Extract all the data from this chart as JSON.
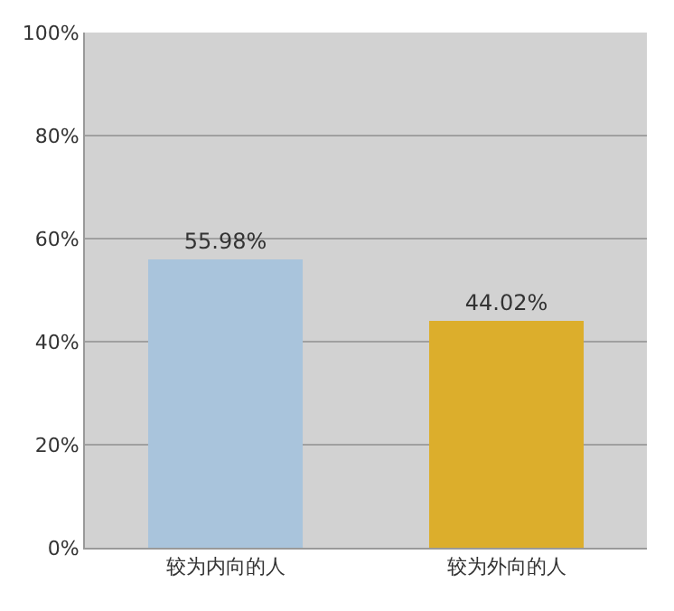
{
  "chart_data": {
    "type": "bar",
    "categories": [
      "较为内向的人",
      "较为外向的人"
    ],
    "values": [
      55.98,
      44.02
    ],
    "colors": [
      "#a9c4dc",
      "#dcae2c"
    ],
    "value_labels": [
      "55.98%",
      "44.02%"
    ],
    "ylim": [
      0,
      100
    ],
    "yticks": [
      {
        "value": 0,
        "label": "0%"
      },
      {
        "value": 20,
        "label": "20%"
      },
      {
        "value": 40,
        "label": "40%"
      },
      {
        "value": 60,
        "label": "60%"
      },
      {
        "value": 80,
        "label": "80%"
      },
      {
        "value": 100,
        "label": "100%"
      }
    ],
    "grid": "y",
    "legend": false
  }
}
